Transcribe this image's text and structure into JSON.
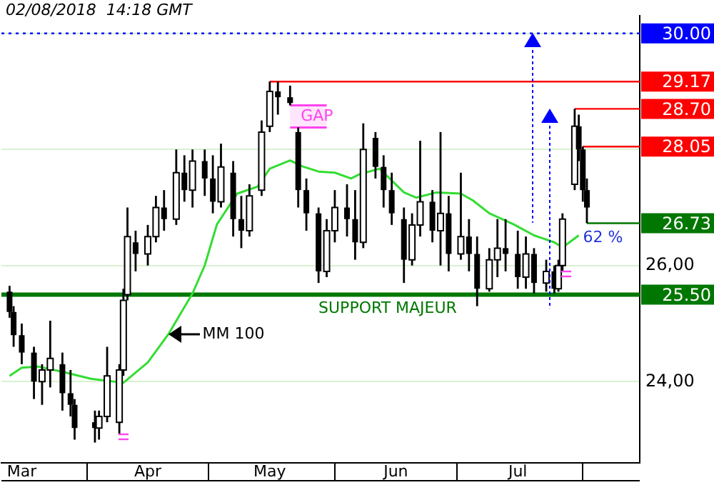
{
  "chart_data": {
    "type": "candlestick",
    "title": "02/08/2018  14:18 GMT",
    "x": [
      "2018-03-13",
      "2018-03-14",
      "2018-03-16",
      "2018-03-19",
      "2018-03-21",
      "2018-03-23",
      "2018-03-26",
      "2018-03-28",
      "2018-03-29",
      "2018-04-03",
      "2018-04-04",
      "2018-04-06",
      "2018-04-09",
      "2018-04-10",
      "2018-04-11",
      "2018-04-13",
      "2018-04-16",
      "2018-04-18",
      "2018-04-20",
      "2018-04-23",
      "2018-04-25",
      "2018-04-27",
      "2018-04-30",
      "2018-05-02",
      "2018-05-04",
      "2018-05-07",
      "2018-05-09",
      "2018-05-11",
      "2018-05-14",
      "2018-05-16",
      "2018-05-18",
      "2018-05-21",
      "2018-05-23",
      "2018-05-25",
      "2018-05-28",
      "2018-05-30",
      "2018-06-01",
      "2018-06-04",
      "2018-06-06",
      "2018-06-08",
      "2018-06-11",
      "2018-06-13",
      "2018-06-15",
      "2018-06-18",
      "2018-06-20",
      "2018-06-22",
      "2018-06-25",
      "2018-06-27",
      "2018-06-29",
      "2018-07-02",
      "2018-07-04",
      "2018-07-06",
      "2018-07-09",
      "2018-07-11",
      "2018-07-13",
      "2018-07-16",
      "2018-07-18",
      "2018-07-20",
      "2018-07-23",
      "2018-07-25",
      "2018-07-26",
      "2018-07-27",
      "2018-07-30",
      "2018-07-31",
      "2018-08-01",
      "2018-08-02"
    ],
    "ohlc": [
      [
        25.55,
        25.65,
        25.1,
        25.2
      ],
      [
        25.2,
        25.3,
        24.6,
        24.8
      ],
      [
        24.8,
        25.0,
        24.3,
        24.5
      ],
      [
        24.5,
        24.6,
        23.7,
        24.0
      ],
      [
        24.0,
        24.3,
        23.6,
        24.2
      ],
      [
        24.2,
        25.05,
        23.9,
        24.4
      ],
      [
        24.3,
        24.5,
        23.5,
        23.8
      ],
      [
        23.8,
        24.2,
        23.4,
        23.6
      ],
      [
        23.6,
        23.7,
        23.0,
        23.2
      ],
      [
        23.3,
        23.5,
        22.95,
        23.2
      ],
      [
        23.2,
        23.5,
        23.0,
        23.4
      ],
      [
        23.4,
        24.6,
        23.3,
        24.1
      ],
      [
        23.3,
        24.3,
        23.1,
        24.2
      ],
      [
        24.2,
        25.6,
        24.1,
        25.4
      ],
      [
        25.5,
        27.0,
        25.4,
        26.5
      ],
      [
        26.4,
        26.6,
        25.9,
        26.2
      ],
      [
        26.2,
        26.7,
        26.0,
        26.5
      ],
      [
        26.5,
        27.2,
        26.4,
        27.0
      ],
      [
        27.0,
        27.3,
        26.6,
        26.8
      ],
      [
        26.8,
        28.0,
        26.7,
        27.6
      ],
      [
        27.6,
        27.9,
        27.1,
        27.3
      ],
      [
        27.3,
        28.0,
        27.0,
        27.8
      ],
      [
        27.8,
        28.0,
        27.2,
        27.5
      ],
      [
        27.5,
        27.9,
        26.9,
        27.1
      ],
      [
        27.1,
        28.1,
        27.0,
        27.7
      ],
      [
        27.6,
        27.8,
        26.5,
        26.8
      ],
      [
        26.8,
        27.2,
        26.3,
        26.6
      ],
      [
        26.6,
        27.4,
        26.5,
        27.2
      ],
      [
        27.3,
        28.5,
        27.2,
        28.3
      ],
      [
        28.4,
        29.17,
        28.3,
        29.0
      ],
      [
        29.0,
        29.17,
        28.6,
        28.9
      ],
      [
        28.9,
        29.1,
        28.76,
        28.8
      ],
      [
        28.3,
        28.38,
        27.0,
        27.3
      ],
      [
        27.3,
        27.5,
        26.6,
        26.9
      ],
      [
        26.9,
        27.0,
        25.7,
        25.9
      ],
      [
        25.9,
        26.8,
        25.8,
        26.6
      ],
      [
        26.6,
        27.3,
        26.4,
        27.0
      ],
      [
        27.0,
        27.4,
        26.5,
        26.8
      ],
      [
        26.8,
        27.3,
        26.1,
        26.4
      ],
      [
        26.4,
        28.45,
        26.3,
        28.0
      ],
      [
        28.2,
        28.3,
        27.5,
        27.7
      ],
      [
        27.7,
        27.9,
        27.0,
        27.3
      ],
      [
        27.3,
        27.6,
        26.7,
        26.9
      ],
      [
        26.8,
        27.0,
        25.7,
        26.1
      ],
      [
        26.1,
        26.9,
        26.0,
        26.7
      ],
      [
        26.7,
        28.15,
        26.5,
        27.1
      ],
      [
        27.1,
        27.3,
        26.4,
        26.6
      ],
      [
        26.6,
        28.3,
        26.0,
        26.9
      ],
      [
        26.9,
        27.2,
        25.9,
        26.2
      ],
      [
        26.2,
        27.6,
        26.1,
        26.5
      ],
      [
        26.5,
        26.8,
        25.9,
        26.2
      ],
      [
        26.2,
        26.5,
        25.3,
        25.6
      ],
      [
        25.6,
        26.3,
        25.55,
        26.1
      ],
      [
        26.1,
        26.8,
        25.8,
        26.3
      ],
      [
        26.3,
        26.8,
        25.9,
        26.2
      ],
      [
        26.2,
        26.6,
        25.6,
        25.8
      ],
      [
        25.8,
        26.5,
        25.6,
        26.2
      ],
      [
        26.2,
        26.3,
        25.52,
        25.7
      ],
      [
        25.7,
        26.1,
        25.55,
        25.9
      ],
      [
        25.9,
        26.0,
        25.52,
        25.6
      ],
      [
        25.6,
        26.1,
        25.55,
        26.0
      ],
      [
        26.0,
        26.9,
        25.9,
        26.8
      ],
      [
        27.4,
        28.7,
        27.3,
        28.4
      ],
      [
        28.4,
        28.6,
        27.8,
        28.0
      ],
      [
        28.0,
        28.05,
        27.1,
        27.3
      ],
      [
        27.3,
        27.5,
        26.73,
        27.0
      ]
    ],
    "series": [
      {
        "type": "line",
        "color": "#33dd33",
        "x": [
          "2018-03-13",
          "2018-03-16",
          "2018-03-20",
          "2018-03-26",
          "2018-04-02",
          "2018-04-10",
          "2018-04-16",
          "2018-04-21",
          "2018-04-27",
          "2018-04-30",
          "2018-05-03",
          "2018-05-08",
          "2018-05-13",
          "2018-05-16",
          "2018-05-21",
          "2018-05-24",
          "2018-05-28",
          "2018-06-01",
          "2018-06-05",
          "2018-06-07",
          "2018-06-12",
          "2018-06-18",
          "2018-06-21",
          "2018-06-26",
          "2018-07-02",
          "2018-07-05",
          "2018-07-09",
          "2018-07-15",
          "2018-07-20",
          "2018-07-25",
          "2018-07-27",
          "2018-07-31"
        ],
        "values": [
          24.1,
          24.24,
          24.26,
          24.17,
          24.05,
          23.98,
          24.33,
          24.81,
          25.52,
          26.0,
          26.71,
          27.24,
          27.36,
          27.67,
          27.81,
          27.71,
          27.62,
          27.6,
          27.5,
          27.57,
          27.67,
          27.26,
          27.17,
          27.26,
          27.24,
          27.12,
          26.9,
          26.71,
          26.52,
          26.4,
          26.31,
          26.52
        ]
      }
    ],
    "xlim": [
      "2018-03-11",
      "2018-08-15"
    ],
    "xticks": [
      {
        "value": "2018-03-16",
        "label": "Mar"
      },
      {
        "value": "2018-04-01",
        "label": null
      },
      {
        "value": "2018-04-16",
        "label": "Apr"
      },
      {
        "value": "2018-05-01",
        "label": null
      },
      {
        "value": "2018-05-16",
        "label": "May"
      },
      {
        "value": "2018-06-01",
        "label": null
      },
      {
        "value": "2018-06-16",
        "label": "Jun"
      },
      {
        "value": "2018-07-01",
        "label": null
      },
      {
        "value": "2018-07-16",
        "label": "Jul"
      },
      {
        "value": "2018-08-01",
        "label": null
      }
    ],
    "ylim": [
      22.6,
      30.3
    ],
    "yticks": [
      {
        "value": 24,
        "label": "24,00"
      },
      {
        "value": 26,
        "label": "26,00"
      },
      {
        "value": 28,
        "label": null
      },
      {
        "value": 30,
        "label": null
      }
    ],
    "grid": "y",
    "legend": false,
    "ref_lines": [
      {
        "axis": "y",
        "value": 30.0,
        "color": "#0000ff",
        "line_style": "dotted",
        "label": "30.00"
      },
      {
        "axis": "y",
        "value": 29.17,
        "color": "#ff0000",
        "label": "29.17"
      },
      {
        "axis": "y",
        "value": 28.7,
        "color": "#ff0000",
        "label": "28.70"
      },
      {
        "axis": "y",
        "value": 28.05,
        "color": "#ff0000",
        "label": "28.05"
      },
      {
        "axis": "y",
        "value": 26.73,
        "color": "#007700",
        "label": "26.73"
      },
      {
        "axis": "y",
        "value": 25.5,
        "color": "#007700",
        "label": "25.50"
      }
    ],
    "bands": [
      {
        "axis": "y",
        "from": 28.38,
        "to": 28.76,
        "label": "GAP",
        "color": "#ff44ee"
      }
    ],
    "annotations": [
      {
        "text": "MM 100",
        "x": "2018-04-21",
        "y": 24.81
      },
      {
        "text": "SUPPORT MAJEUR",
        "x": "2018-06-14",
        "y": 25.5
      },
      "62 %"
    ]
  }
}
